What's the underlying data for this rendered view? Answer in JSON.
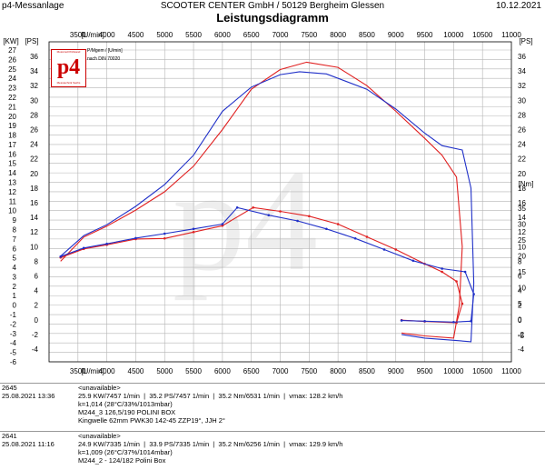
{
  "header": {
    "left": "p4-Messanlage",
    "center": "SCOOTER CENTER GmbH / 50129 Bergheim Glessen",
    "right": "10.12.2021",
    "title": "Leistungsdiagramm"
  },
  "logo": {
    "text": "p4",
    "small_top": "Motorrad Prüfstand",
    "small_bottom": "Messtechnik Sachs",
    "watermark": "p4"
  },
  "meta_lines": [
    "P/Mgem / [U/min]",
    "nach DIN 70020"
  ],
  "colors": {
    "run_red": "#e02020",
    "run_blue": "#2030c8",
    "grid": "#b4b4b4"
  },
  "chart_data": {
    "type": "line",
    "title": "Leistungsdiagramm",
    "xlabel": "[U/min]",
    "xlim": [
      3000,
      11000
    ],
    "x_ticks": [
      3500,
      4000,
      4500,
      5000,
      5500,
      6000,
      6500,
      7000,
      7500,
      8000,
      8500,
      9000,
      9500,
      10000,
      10500,
      11000
    ],
    "left_axis_unit": "[KW]",
    "left_axis_ticks": [
      -6,
      -5,
      -4,
      -3,
      -2,
      -1,
      0,
      1,
      2,
      3,
      4,
      5,
      6,
      7,
      8,
      9,
      10,
      11,
      12,
      13,
      14,
      15,
      16,
      17,
      18,
      19,
      20,
      21,
      22,
      23,
      24,
      25,
      26,
      27
    ],
    "left_axis_ylim": [
      -6,
      28
    ],
    "ps_axis_unit": "[PS]",
    "ps_axis_ticks": [
      -4,
      -2,
      0,
      2,
      4,
      6,
      8,
      10,
      12,
      14,
      16,
      18,
      20,
      22,
      24,
      26,
      28,
      30,
      32,
      34,
      36
    ],
    "nm_axis_unit": "[Nm]",
    "nm_axis_ticks": [
      -5,
      0,
      5,
      10,
      15,
      20,
      25,
      30,
      35
    ],
    "series": [
      {
        "name": "2645 Power",
        "unit": "PS",
        "color": "#e02020",
        "points": [
          [
            3200,
            8.0
          ],
          [
            3600,
            11.3
          ],
          [
            4000,
            12.8
          ],
          [
            4500,
            15.0
          ],
          [
            5000,
            17.5
          ],
          [
            5500,
            21.0
          ],
          [
            6000,
            26.0
          ],
          [
            6500,
            31.5
          ],
          [
            7000,
            34.2
          ],
          [
            7457,
            35.2
          ],
          [
            8000,
            34.5
          ],
          [
            8500,
            32.0
          ],
          [
            9000,
            28.5
          ],
          [
            9500,
            24.8
          ],
          [
            9800,
            22.5
          ],
          [
            10050,
            19.5
          ],
          [
            10150,
            10.0
          ],
          [
            10100,
            2.0
          ],
          [
            10000,
            -2.5
          ],
          [
            9500,
            -2.2
          ],
          [
            9100,
            -1.8
          ]
        ]
      },
      {
        "name": "2641 Power",
        "unit": "PS",
        "color": "#2030c8",
        "points": [
          [
            3200,
            8.7
          ],
          [
            3600,
            11.5
          ],
          [
            4000,
            13.0
          ],
          [
            4500,
            15.5
          ],
          [
            5000,
            18.5
          ],
          [
            5500,
            22.5
          ],
          [
            6000,
            28.5
          ],
          [
            6500,
            31.8
          ],
          [
            7000,
            33.5
          ],
          [
            7335,
            33.9
          ],
          [
            7800,
            33.6
          ],
          [
            8500,
            31.5
          ],
          [
            9000,
            28.8
          ],
          [
            9500,
            25.5
          ],
          [
            9800,
            23.8
          ],
          [
            10150,
            23.2
          ],
          [
            10300,
            18.0
          ],
          [
            10350,
            5.0
          ],
          [
            10300,
            -3.0
          ],
          [
            10000,
            -2.8
          ],
          [
            9500,
            -2.5
          ],
          [
            9100,
            -2.0
          ]
        ]
      },
      {
        "name": "2645 Torque",
        "unit": "Nm",
        "color": "#e02020",
        "points": [
          [
            3200,
            19.5
          ],
          [
            3600,
            22.2
          ],
          [
            4000,
            23.5
          ],
          [
            4500,
            25.3
          ],
          [
            5000,
            25.5
          ],
          [
            5500,
            27.5
          ],
          [
            6000,
            29.5
          ],
          [
            6531,
            35.2
          ],
          [
            7000,
            34.0
          ],
          [
            7500,
            32.5
          ],
          [
            8000,
            30.0
          ],
          [
            8500,
            26.0
          ],
          [
            9000,
            22.0
          ],
          [
            9500,
            17.5
          ],
          [
            9800,
            15.0
          ],
          [
            10050,
            12.0
          ],
          [
            10150,
            5.0
          ],
          [
            10050,
            -1.0
          ],
          [
            9500,
            -0.6
          ],
          [
            9100,
            -0.2
          ]
        ]
      },
      {
        "name": "2641 Torque",
        "unit": "Nm",
        "color": "#2030c8",
        "points": [
          [
            3200,
            19.8
          ],
          [
            3600,
            22.5
          ],
          [
            4000,
            23.8
          ],
          [
            4500,
            25.6
          ],
          [
            5000,
            27.0
          ],
          [
            5500,
            28.5
          ],
          [
            6000,
            30.0
          ],
          [
            6256,
            35.2
          ],
          [
            6800,
            32.8
          ],
          [
            7300,
            31.0
          ],
          [
            7800,
            28.5
          ],
          [
            8300,
            25.5
          ],
          [
            8800,
            22.0
          ],
          [
            9300,
            18.5
          ],
          [
            9800,
            16.0
          ],
          [
            10200,
            15.0
          ],
          [
            10350,
            8.0
          ],
          [
            10300,
            -0.5
          ],
          [
            10000,
            -0.8
          ],
          [
            9500,
            -0.5
          ],
          [
            9100,
            -0.3
          ]
        ]
      }
    ]
  },
  "runs": [
    {
      "id": "2645",
      "date": "25.08.2021  13:36",
      "unavailable": "<unavailable>",
      "line1": "25.9 KW/7457 1/min  |  35.2 PS/7457 1/min  |  35.2 Nm/6531 1/min  |  vmax: 128.2 km/h",
      "line2": "k=1,014 (28°C/33%/1013mbar)",
      "line3": "M244_3 126,5/190 POLINI BOX",
      "line4": "Kingwelle 62mm PWK30 142-45 ZZP19°, JJH 2°"
    },
    {
      "id": "2641",
      "date": "25.08.2021  11:16",
      "unavailable": "<unavailable>",
      "line1": "24.9 KW/7335 1/min  |  33.9 PS/7335 1/min  |  35.2 Nm/6256 1/min  |  vmax: 129.9 km/h",
      "line2": "k=1,009 (26°C/37%/1014mbar)",
      "line3": "M244_2 - 124/182 Polini Box",
      "line4": ""
    }
  ]
}
